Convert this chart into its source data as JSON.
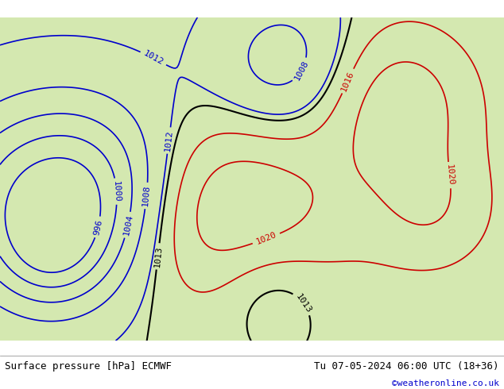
{
  "title_left": "Surface pressure [hPa] ECMWF",
  "title_right": "Tu 07-05-2024 06:00 UTC (18+36)",
  "credit": "©weatheronline.co.uk",
  "bg_color": "#c8e6a0",
  "land_color": "#d4e8b0",
  "ocean_color": "#b8d4f0",
  "contour_colors": {
    "low": "#0000cc",
    "mid": "#000000",
    "high": "#cc0000"
  },
  "label_fontsize": 8,
  "footer_fontsize": 9,
  "credit_fontsize": 8,
  "credit_color": "#0000cc"
}
